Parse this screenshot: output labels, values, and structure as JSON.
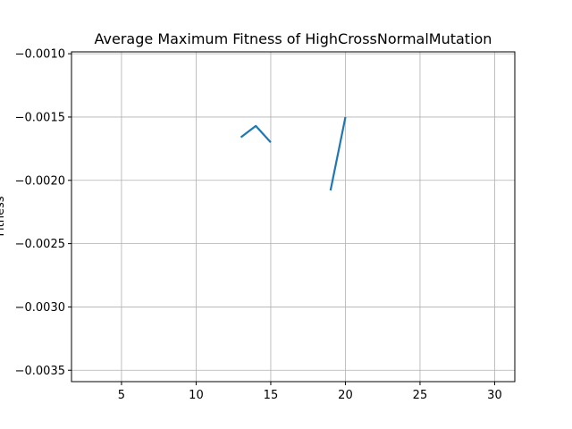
{
  "chart_data": {
    "type": "line",
    "title": "Average Maximum Fitness of HighCrossNormalMutation",
    "xlabel": "",
    "ylabel": "Fitness",
    "xlim": [
      1.65,
      31.35
    ],
    "ylim": [
      -0.00359,
      -0.000985
    ],
    "xticks": [
      5,
      10,
      15,
      20,
      25,
      30
    ],
    "xtick_labels": [
      "5",
      "10",
      "15",
      "20",
      "25",
      "30"
    ],
    "yticks": [
      -0.001,
      -0.0015,
      -0.002,
      -0.0025,
      -0.003,
      -0.0035
    ],
    "ytick_labels": [
      "−0.0010",
      "−0.0015",
      "−0.0020",
      "−0.0025",
      "−0.0030",
      "−0.0035"
    ],
    "grid": true,
    "series": [
      {
        "color": "#1f77b4",
        "segments": [
          [
            [
              13,
              -0.00166
            ],
            [
              14,
              -0.00157
            ],
            [
              15,
              -0.0017
            ]
          ],
          [
            [
              19,
              -0.00208
            ],
            [
              20,
              -0.0015
            ]
          ]
        ]
      }
    ]
  }
}
